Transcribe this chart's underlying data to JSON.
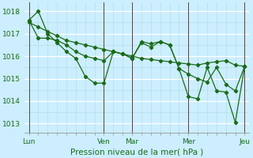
{
  "xlabel": "Pression niveau de la mer( hPa )",
  "bg_color": "#cceeff",
  "line_color": "#1a6b1a",
  "grid_major_color": "#ffffff",
  "grid_minor_color": "#aadddd",
  "ylim": [
    1012.6,
    1018.4
  ],
  "yticks": [
    1013,
    1014,
    1015,
    1016,
    1017,
    1018
  ],
  "x_day_labels": [
    "Lun",
    "Ven",
    "Mar",
    "Mer",
    "Jeu"
  ],
  "x_day_positions": [
    0,
    8,
    11,
    17,
    23
  ],
  "xlim": [
    -0.5,
    23.5
  ],
  "series1": [
    1017.5,
    1017.3,
    1017.1,
    1016.9,
    1016.7,
    1016.6,
    1016.5,
    1016.4,
    1016.3,
    1016.2,
    1016.1,
    1016.0,
    1015.9,
    1015.85,
    1015.8,
    1015.75,
    1015.7,
    1015.65,
    1015.6,
    1015.7,
    1015.75,
    1015.8,
    1015.6,
    1015.55
  ],
  "series2": [
    1017.6,
    1016.8,
    1016.8,
    1016.7,
    1016.5,
    1016.2,
    1016.0,
    1015.9,
    1015.8,
    1016.2,
    1016.1,
    1015.9,
    1016.6,
    1016.4,
    1016.65,
    1016.5,
    1015.45,
    1015.2,
    1015.0,
    1014.85,
    1015.5,
    1014.75,
    1014.45,
    1015.55
  ],
  "series3": [
    1017.6,
    1018.0,
    1017.0,
    1016.6,
    1016.2,
    1015.9,
    1015.1,
    1014.8,
    1014.8,
    1016.2,
    1016.1,
    1015.9,
    1016.65,
    1016.55,
    1016.65,
    1016.5,
    1015.45,
    1014.2,
    1014.1,
    1015.5,
    1014.45,
    1014.4,
    1013.05,
    1015.55
  ],
  "vline_color": "#444444",
  "vline_positions": [
    0,
    8,
    11,
    17,
    23
  ]
}
